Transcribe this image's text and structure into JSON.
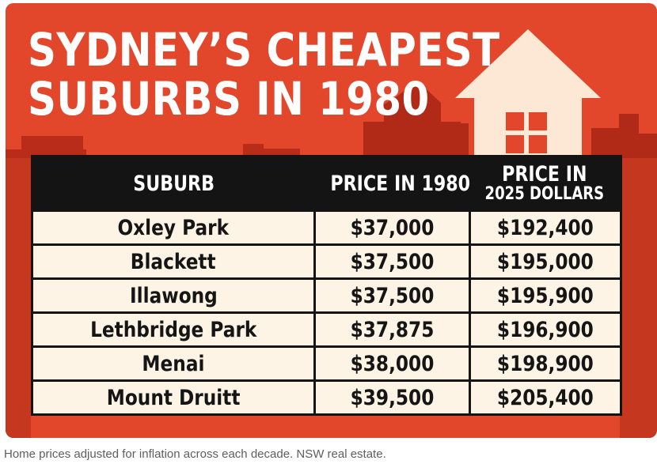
{
  "chart_data": {
    "type": "table",
    "title": "SYDNEY'S CHEAPEST SUBURBS IN 1980",
    "title_lines": [
      "SYDNEY’S CHEAPEST",
      "SUBURBS IN 1980"
    ],
    "columns": [
      "SUBURB",
      "PRICE IN 1980",
      "PRICE IN 2025 DOLLARS"
    ],
    "header": {
      "suburb": "SUBURB",
      "price_1980": "PRICE IN 1980",
      "price_2025_line1": "PRICE IN",
      "price_2025_line2": "2025 DOLLARS"
    },
    "rows": [
      {
        "suburb": "Oxley Park",
        "price_1980": "$37,000",
        "price_2025": "$192,400"
      },
      {
        "suburb": "Blackett",
        "price_1980": "$37,500",
        "price_2025": "$195,000"
      },
      {
        "suburb": "Illawong",
        "price_1980": "$37,500",
        "price_2025": "$195,900"
      },
      {
        "suburb": "Lethbridge Park",
        "price_1980": "$37,875",
        "price_2025": "$196,900"
      },
      {
        "suburb": "Menai",
        "price_1980": "$38,000",
        "price_2025": "$198,900"
      },
      {
        "suburb": "Mount Druitt",
        "price_1980": "$39,500",
        "price_2025": "$205,400"
      }
    ],
    "values_1980": [
      37000,
      37500,
      37500,
      37875,
      38000,
      39500
    ],
    "values_2025": [
      192400,
      195000,
      195900,
      196900,
      198900,
      205400
    ]
  },
  "caption": "Home prices adjusted for inflation across each decade. NSW real estate.",
  "colors": {
    "background": "#e2472c",
    "skyline": "#a92818",
    "house": "#fde8d6",
    "window": "#e2472c",
    "table_header": "#141414",
    "table_cell": "#fdf4e6",
    "text_light": "#ffffff",
    "text_dark": "#151515"
  },
  "icons": [
    "house-icon",
    "city-skyline"
  ]
}
